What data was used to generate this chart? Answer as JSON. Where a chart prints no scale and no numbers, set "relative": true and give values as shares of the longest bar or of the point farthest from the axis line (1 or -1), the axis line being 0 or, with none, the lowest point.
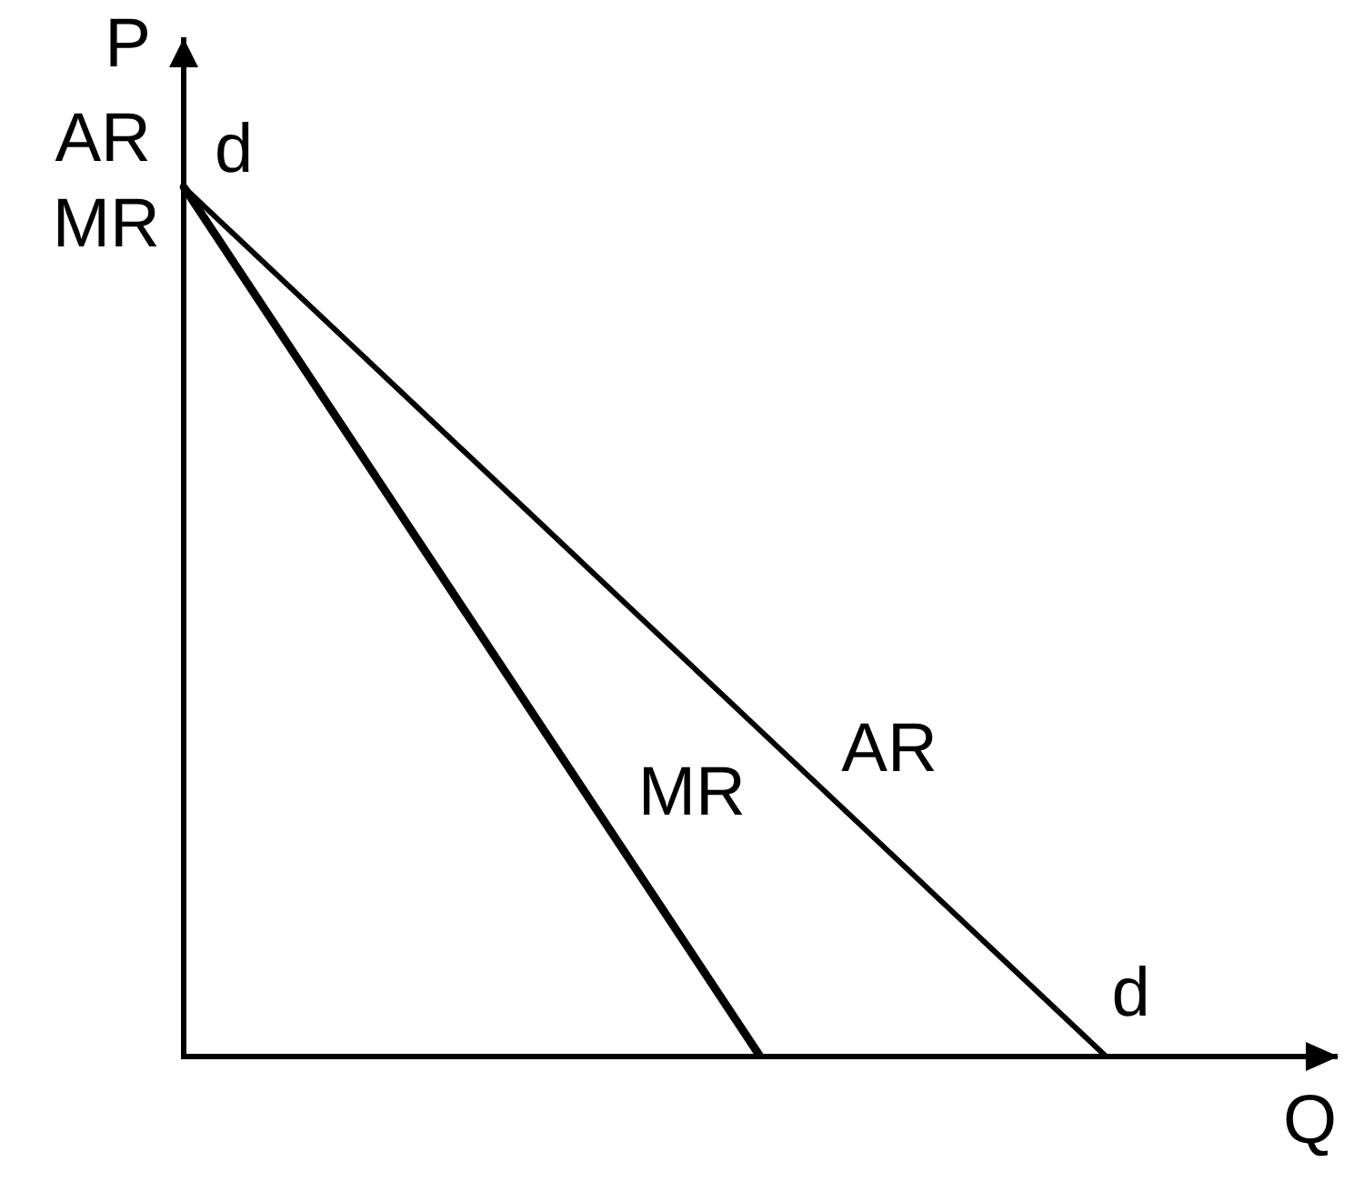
{
  "chart_data": {
    "type": "line",
    "xlabel": "Q",
    "ylabel": "P",
    "relative": true,
    "categories": [
      null,
      null,
      null,
      null,
      null,
      null,
      null,
      null,
      null,
      null,
      null
    ],
    "series": [
      {
        "name": "AR",
        "color": "#000000",
        "values": [
          1,
          0.875,
          0.75,
          0.625,
          0.5,
          0.375,
          0.25,
          0.125,
          0,
          null,
          null
        ]
      },
      {
        "name": "MR",
        "color": "#000000",
        "values": [
          1,
          0.8,
          0.6,
          0.4,
          0.2,
          0,
          null,
          null,
          null,
          null,
          null
        ]
      }
    ],
    "annotations": [
      "AR",
      "MR",
      "d",
      "d"
    ],
    "grid": false,
    "legend": false
  }
}
